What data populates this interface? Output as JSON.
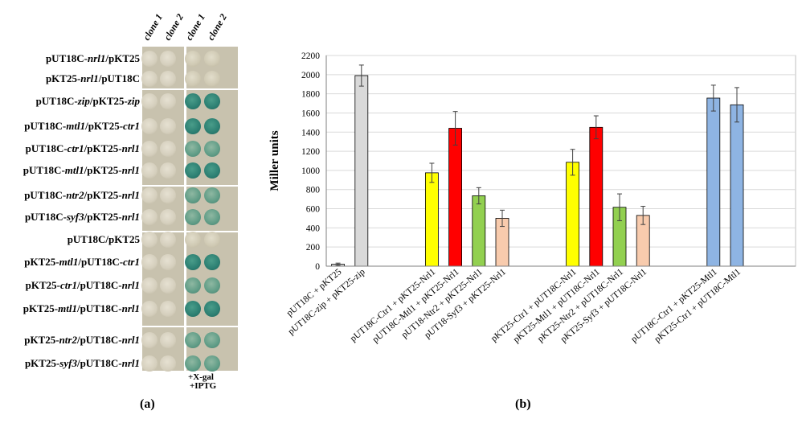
{
  "panel_a": {
    "letter": "(a)",
    "headers": [
      "clone 1",
      "clone 2",
      "clone 1",
      "clone 2"
    ],
    "additives": [
      "+X-gal",
      "+IPTG"
    ],
    "rows": [
      {
        "pre": "pUT18C-",
        "gene": "nrl1",
        "post": "/pKT25",
        "blue": 0
      },
      {
        "pre": "pKT25-",
        "gene": "nrl1",
        "post": "/pUT18C",
        "blue": 0
      },
      {
        "pre": "pUT18C-",
        "gene": "zip",
        "post": "/pKT25-",
        "gene2": "zip",
        "blue": 3
      },
      {
        "pre": "pUT18C-",
        "gene": "mtl1",
        "post": "/pKT25-",
        "gene2": "ctr1",
        "blue": 3
      },
      {
        "pre": "pUT18C-",
        "gene": "ctr1",
        "post": "/pKT25-",
        "gene2": "nrl1",
        "blue": 2
      },
      {
        "pre": "pUT18C-",
        "gene": "mtl1",
        "post": "/pKT25-",
        "gene2": "nrl1",
        "blue": 3
      },
      {
        "pre": "pUT18C-",
        "gene": "ntr2",
        "post": "/pKT25-",
        "gene2": "nrl1",
        "blue": 2
      },
      {
        "pre": "pUT18C-",
        "gene": "syf3",
        "post": "/pKT25-",
        "gene2": "nrl1",
        "blue": 2
      },
      {
        "pre": "pUT18C/pKT25",
        "blue": 0
      },
      {
        "pre": "pKT25-",
        "gene": "mtl1",
        "post": "/pUT18C-",
        "gene2": "ctr1",
        "blue": 3
      },
      {
        "pre": "pKT25-",
        "gene": "ctr1",
        "post": "/pUT18C-",
        "gene2": "nrl1",
        "blue": 2
      },
      {
        "pre": "pKT25-",
        "gene": "mtl1",
        "post": "/pUT18C-",
        "gene2": "nrl1",
        "blue": 3
      },
      {
        "pre": "pKT25-",
        "gene": "ntr2",
        "post": "/pUT18C-",
        "gene2": "nrl1",
        "blue": 2
      },
      {
        "pre": "pKT25-",
        "gene": "syf3",
        "post": "/pUT18C-",
        "gene2": "nrl1",
        "blue": 2
      }
    ]
  },
  "chart_data": {
    "type": "bar",
    "panel_letter": "(b)",
    "title": "",
    "xlabel": "",
    "ylabel": "Miller units",
    "ylim": [
      0,
      2200
    ],
    "yticks": [
      0,
      200,
      400,
      600,
      800,
      1000,
      1200,
      1400,
      1600,
      1800,
      2000,
      2200
    ],
    "grid": true,
    "categories": [
      "pUT18C + pKT25",
      "pUT18C-zip + pKT25-zip",
      "pUT18C-Ctr1 + pKT25-Nrl1",
      "pUT18C-Mtl1 + pKT25-Nrl1",
      "pUT18-Ntr2 + pKT25-Nrl1",
      "pUT18-Syf3 + pKT25-Nrl1",
      "pKT25-Ctr1 + pUT18C-Nrl1",
      "pKT25-Mtl1 + pUT18C-Nrl1",
      "pKT25-Ntr2 + pUT18C-Nrl1",
      "pKT25-Syf3 + pUT18C-Nrl1",
      "pUT18C-Ctr1 + pKT25-Mtl1",
      "pKT25-Ctr1 + pUT18C-Mtl1"
    ],
    "values": [
      20,
      1990,
      975,
      1440,
      735,
      500,
      1085,
      1450,
      615,
      530,
      1755,
      1685
    ],
    "errors": [
      12,
      110,
      100,
      175,
      85,
      85,
      135,
      120,
      140,
      95,
      135,
      180
    ],
    "colors": [
      "#d9d9d9",
      "#d9d9d9",
      "#ffff00",
      "#ff0000",
      "#92d050",
      "#f8cbad",
      "#ffff00",
      "#ff0000",
      "#92d050",
      "#f8cbad",
      "#8eb4e3",
      "#8eb4e3"
    ]
  }
}
